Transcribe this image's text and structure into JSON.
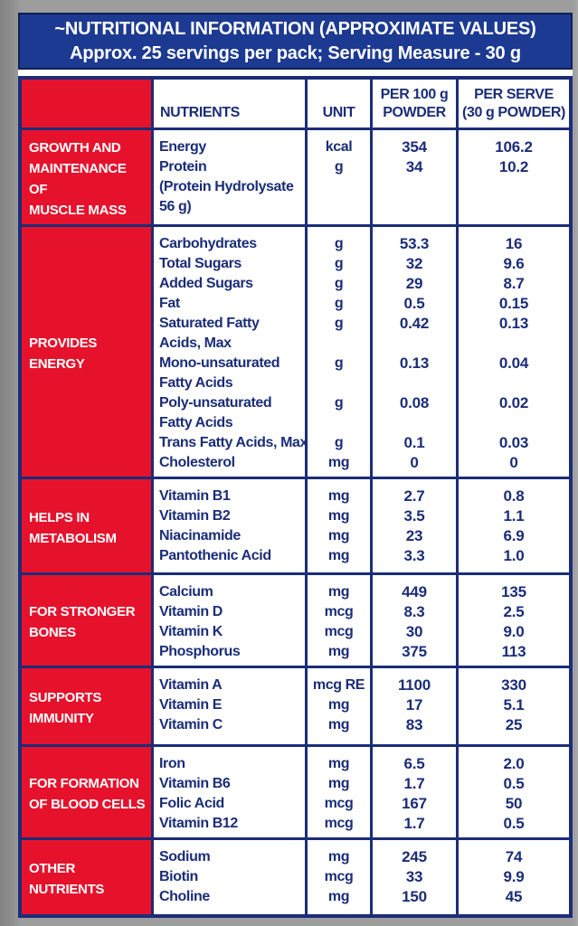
{
  "colors": {
    "red": "#e6122c",
    "blue": "#1d3a92",
    "navy": "#1b2d78",
    "banner_border": "#101f55",
    "gray_bg": "#9d9d9d"
  },
  "banner": {
    "line1": "~NUTRITIONAL INFORMATION (APPROXIMATE VALUES)",
    "line2": "Approx. 25 servings per pack; Serving Measure - 30 g"
  },
  "table": {
    "headers": {
      "nutrients": "NUTRIENTS",
      "unit": "UNIT",
      "per100_line1": "PER 100 g",
      "per100_line2": "POWDER",
      "per_serve_line1": "PER SERVE",
      "per_serve_line2": "(30 g POWDER)"
    },
    "sections": [
      {
        "category_lines": [
          "GROWTH AND",
          "MAINTENANCE OF",
          "MUSCLE MASS"
        ],
        "lines": [
          [
            "Energy",
            "kcal",
            "354",
            "106.2"
          ],
          [
            "Protein",
            "g",
            "34",
            "10.2"
          ],
          [
            "(Protein Hydrolysate",
            "",
            "",
            ""
          ],
          [
            "56 g)",
            "",
            "",
            ""
          ]
        ]
      },
      {
        "category_lines": [
          "PROVIDES",
          "ENERGY"
        ],
        "lines": [
          [
            "Carbohydrates",
            "g",
            "53.3",
            "16"
          ],
          [
            "Total Sugars",
            "g",
            "32",
            "9.6"
          ],
          [
            "Added Sugars",
            "g",
            "29",
            "8.7"
          ],
          [
            "Fat",
            "g",
            "0.5",
            "0.15"
          ],
          [
            "Saturated Fatty",
            "g",
            "0.42",
            "0.13"
          ],
          [
            "Acids, Max",
            "",
            "",
            ""
          ],
          [
            "Mono-unsaturated",
            "g",
            "0.13",
            "0.04"
          ],
          [
            "Fatty Acids",
            "",
            "",
            ""
          ],
          [
            "Poly-unsaturated",
            "g",
            "0.08",
            "0.02"
          ],
          [
            "Fatty Acids",
            "",
            "",
            ""
          ],
          [
            "Trans Fatty Acids, Max",
            "g",
            "0.1",
            "0.03"
          ],
          [
            "Cholesterol",
            "mg",
            "0",
            "0"
          ]
        ]
      },
      {
        "category_lines": [
          "HELPS IN",
          "METABOLISM"
        ],
        "lines": [
          [
            "Vitamin B1",
            "mg",
            "2.7",
            "0.8"
          ],
          [
            "Vitamin B2",
            "mg",
            "3.5",
            "1.1"
          ],
          [
            "Niacinamide",
            "mg",
            "23",
            "6.9"
          ],
          [
            "Pantothenic Acid",
            "mg",
            "3.3",
            "1.0"
          ]
        ]
      },
      {
        "category_lines": [
          "FOR STRONGER",
          "BONES"
        ],
        "lines": [
          [
            "Calcium",
            "mg",
            "449",
            "135"
          ],
          [
            "Vitamin D",
            "mcg",
            "8.3",
            "2.5"
          ],
          [
            "Vitamin K",
            "mcg",
            "30",
            "9.0"
          ],
          [
            "Phosphorus",
            "mg",
            "375",
            "113"
          ]
        ]
      },
      {
        "category_lines": [
          "SUPPORTS",
          "IMMUNITY"
        ],
        "lines": [
          [
            "Vitamin A",
            "mcg RE",
            "1100",
            "330"
          ],
          [
            "Vitamin E",
            "mg",
            "17",
            "5.1"
          ],
          [
            "Vitamin C",
            "mg",
            "83",
            "25"
          ]
        ]
      },
      {
        "category_lines": [
          "FOR FORMATION",
          "OF BLOOD CELLS"
        ],
        "lines": [
          [
            "Iron",
            "mg",
            "6.5",
            "2.0"
          ],
          [
            "Vitamin B6",
            "mg",
            "1.7",
            "0.5"
          ],
          [
            "Folic Acid",
            "mcg",
            "167",
            "50"
          ],
          [
            "Vitamin B12",
            "mcg",
            "1.7",
            "0.5"
          ]
        ]
      },
      {
        "category_lines": [
          "OTHER",
          "NUTRIENTS"
        ],
        "lines": [
          [
            "Sodium",
            "mg",
            "245",
            "74"
          ],
          [
            "Biotin",
            "mcg",
            "33",
            "9.9"
          ],
          [
            "Choline",
            "mg",
            "150",
            "45"
          ]
        ]
      }
    ]
  }
}
